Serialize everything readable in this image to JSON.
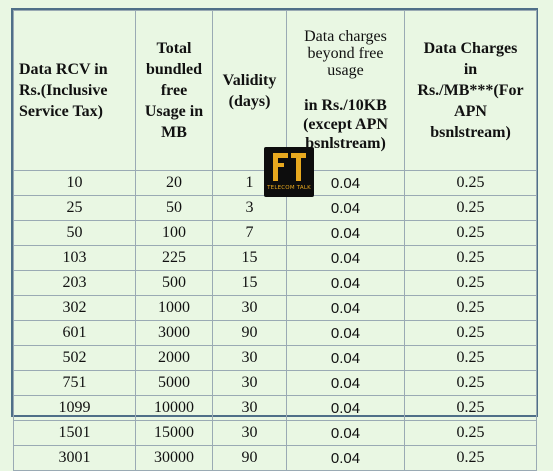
{
  "table": {
    "headers": [
      "Data RCV in\nRs.(Inclusive\nService Tax)",
      "Total\nbundled\nfree\nUsage in\nMB",
      "Validity\n(days)",
      {
        "light": "Data charges\nbeyond free\nusage",
        "bold": "in Rs./10KB\n(except APN\nbsnlstream)"
      },
      "Data Charges\nin\nRs./MB***(For\nAPN\nbsnlstream)"
    ],
    "rows": [
      [
        "10",
        "20",
        "1",
        "0.04",
        "0.25"
      ],
      [
        "25",
        "50",
        "3",
        "0.04",
        "0.25"
      ],
      [
        "50",
        "100",
        "7",
        "0.04",
        "0.25"
      ],
      [
        "103",
        "225",
        "15",
        "0.04",
        "0.25"
      ],
      [
        "203",
        "500",
        "15",
        "0.04",
        "0.25"
      ],
      [
        "302",
        "1000",
        "30",
        "0.04",
        "0.25"
      ],
      [
        "601",
        "3000",
        "90",
        "0.04",
        "0.25"
      ],
      [
        "502",
        "2000",
        "30",
        "0.04",
        "0.25"
      ],
      [
        "751",
        "5000",
        "30",
        "0.04",
        "0.25"
      ],
      [
        "1099",
        "10000",
        "30",
        "0.04",
        "0.25"
      ],
      [
        "1501",
        "15000",
        "30",
        "0.04",
        "0.25"
      ],
      [
        "3001",
        "30000",
        "90",
        "0.04",
        "0.25"
      ]
    ]
  },
  "watermark": {
    "text": "TELECOM TALK",
    "icon": "telecom-talk-logo",
    "color": "#e8a91f"
  }
}
